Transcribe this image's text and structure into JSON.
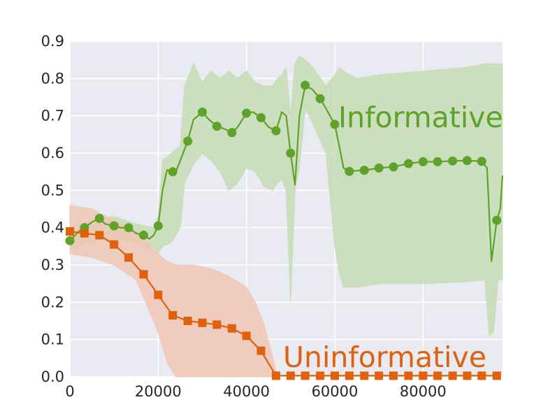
{
  "chart_data": {
    "type": "line",
    "xlim": [
      0,
      98000
    ],
    "ylim": [
      0,
      0.9
    ],
    "x_ticks": [
      0,
      20000,
      40000,
      60000,
      80000
    ],
    "x_tick_labels": [
      "0",
      "20000",
      "40000",
      "60000",
      "80000"
    ],
    "y_ticks": [
      0.0,
      0.1,
      0.2,
      0.3,
      0.4,
      0.5,
      0.6,
      0.7,
      0.8,
      0.9
    ],
    "y_tick_labels": [
      "0.0",
      "0.1",
      "0.2",
      "0.3",
      "0.4",
      "0.5",
      "0.6",
      "0.7",
      "0.8",
      "0.9"
    ],
    "grid": true,
    "background": "#eaeaf2",
    "series": [
      {
        "name": "Informative",
        "color": "#5ea228",
        "band_color": "#c6ddb5",
        "marker": "circle",
        "line_x": [
          0,
          2000,
          3300,
          5000,
          6700,
          8000,
          10000,
          11500,
          13300,
          15000,
          16700,
          18000,
          19000,
          20000,
          21000,
          22000,
          23000,
          24000,
          25000,
          26700,
          28000,
          30000,
          31500,
          33300,
          35000,
          36700,
          38000,
          40000,
          41500,
          43300,
          45000,
          46700,
          48000,
          49000,
          50000,
          51000,
          52000,
          53300,
          55000,
          56700,
          58000,
          60000,
          61000,
          62000,
          63300,
          65000,
          66700,
          70000,
          73300,
          76700,
          80000,
          83300,
          86700,
          90000,
          93300,
          94500,
          95500,
          96700,
          97500,
          98000
        ],
        "line_y": [
          0.365,
          0.39,
          0.4,
          0.415,
          0.425,
          0.41,
          0.405,
          0.4,
          0.4,
          0.385,
          0.38,
          0.37,
          0.38,
          0.405,
          0.5,
          0.555,
          0.55,
          0.55,
          0.58,
          0.632,
          0.69,
          0.71,
          0.69,
          0.672,
          0.665,
          0.655,
          0.67,
          0.707,
          0.71,
          0.695,
          0.67,
          0.66,
          0.71,
          0.7,
          0.6,
          0.515,
          0.7,
          0.782,
          0.77,
          0.746,
          0.72,
          0.677,
          0.62,
          0.56,
          0.551,
          0.553,
          0.554,
          0.56,
          0.563,
          0.572,
          0.577,
          0.577,
          0.579,
          0.58,
          0.578,
          0.56,
          0.31,
          0.42,
          0.45,
          0.54
        ],
        "markers_x": [
          0,
          3300,
          6700,
          10000,
          13300,
          16700,
          20000,
          23300,
          26700,
          30000,
          33300,
          36700,
          40000,
          43300,
          46700,
          50000,
          53300,
          56700,
          60000,
          63300,
          66700,
          70000,
          73300,
          76700,
          80000,
          83300,
          86700,
          90000,
          93300,
          96700
        ],
        "markers_y": [
          0.365,
          0.4,
          0.425,
          0.405,
          0.4,
          0.38,
          0.405,
          0.55,
          0.632,
          0.71,
          0.672,
          0.655,
          0.707,
          0.695,
          0.66,
          0.6,
          0.782,
          0.746,
          0.677,
          0.551,
          0.554,
          0.56,
          0.563,
          0.572,
          0.577,
          0.577,
          0.579,
          0.58,
          0.578,
          0.42
        ],
        "band_x": [
          0,
          5000,
          10000,
          15000,
          19000,
          20000,
          21000,
          23000,
          25000,
          26000,
          28000,
          30000,
          32000,
          34000,
          36000,
          38000,
          40000,
          42000,
          44000,
          46000,
          47000,
          48000,
          49000,
          50000,
          51000,
          52000,
          53300,
          55000,
          58000,
          60000,
          61000,
          62000,
          65000,
          70000,
          80000,
          90000,
          94000,
          95000,
          96000,
          97000,
          98000
        ],
        "band_upper": [
          0.4,
          0.42,
          0.43,
          0.41,
          0.4,
          0.43,
          0.58,
          0.6,
          0.62,
          0.78,
          0.84,
          0.79,
          0.82,
          0.8,
          0.82,
          0.8,
          0.82,
          0.79,
          0.78,
          0.78,
          0.8,
          0.81,
          0.83,
          0.7,
          0.84,
          0.86,
          0.85,
          0.83,
          0.78,
          0.81,
          0.83,
          0.82,
          0.8,
          0.81,
          0.82,
          0.83,
          0.84,
          0.84,
          0.84,
          0.84,
          0.84
        ],
        "band_lower": [
          0.34,
          0.36,
          0.37,
          0.36,
          0.34,
          0.33,
          0.35,
          0.36,
          0.4,
          0.52,
          0.57,
          0.6,
          0.58,
          0.55,
          0.5,
          0.52,
          0.56,
          0.55,
          0.51,
          0.5,
          0.52,
          0.53,
          0.5,
          0.2,
          0.5,
          0.56,
          0.72,
          0.68,
          0.6,
          0.35,
          0.28,
          0.24,
          0.24,
          0.25,
          0.25,
          0.255,
          0.26,
          0.11,
          0.12,
          0.26,
          0.26
        ]
      },
      {
        "name": "Uninformative",
        "color": "#e0600c",
        "band_color": "#f0c7b4",
        "marker": "square",
        "line_x": [
          0,
          3300,
          6700,
          10000,
          13300,
          16700,
          20000,
          23300,
          26700,
          30000,
          33300,
          36700,
          40000,
          43300,
          46700,
          50000,
          53300,
          56700,
          60000,
          63300,
          66700,
          70000,
          73300,
          76700,
          80000,
          83300,
          86700,
          90000,
          93300,
          96700
        ],
        "line_y": [
          0.39,
          0.385,
          0.38,
          0.355,
          0.32,
          0.275,
          0.22,
          0.165,
          0.15,
          0.145,
          0.14,
          0.13,
          0.11,
          0.07,
          0.003,
          0.003,
          0.003,
          0.003,
          0.003,
          0.003,
          0.003,
          0.003,
          0.003,
          0.003,
          0.003,
          0.003,
          0.003,
          0.003,
          0.003,
          0.003
        ],
        "band_x": [
          0,
          5000,
          10000,
          15000,
          20000,
          22000,
          24000,
          28000,
          32000,
          36000,
          40000,
          42000,
          44000,
          46000,
          47000
        ],
        "band_upper": [
          0.46,
          0.45,
          0.42,
          0.39,
          0.33,
          0.31,
          0.3,
          0.3,
          0.29,
          0.27,
          0.24,
          0.2,
          0.14,
          0.05,
          0.0
        ],
        "band_lower": [
          0.33,
          0.32,
          0.3,
          0.26,
          0.12,
          0.04,
          0.0,
          0.0,
          0.0,
          0.0,
          0.0,
          0.0,
          0.0,
          0.0,
          0.0
        ]
      }
    ]
  }
}
